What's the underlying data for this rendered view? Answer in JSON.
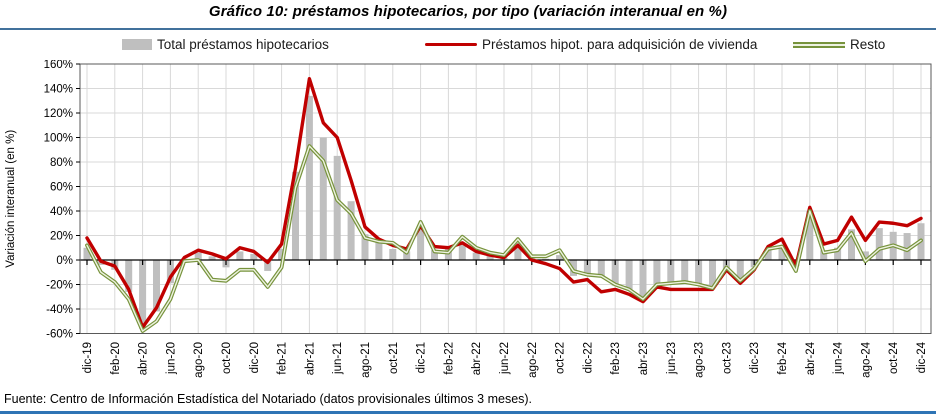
{
  "title": "Gráfico 10: préstamos hipotecarios, por tipo (variación interanual en %)",
  "footer": "Fuente: Centro de Información Estadística del Notariado (datos provisionales últimos 3 meses).",
  "legend": [
    {
      "label": "Total préstamos hipotecarios",
      "swatch": "bar",
      "color": "#BFBFBF"
    },
    {
      "label": "Préstamos hipot. para adquisición de vivienda",
      "swatch": "line",
      "color": "#C00000"
    },
    {
      "label": "Resto",
      "swatch": "line-double",
      "color": "#77933C"
    }
  ],
  "colors": {
    "bar": "#BFBFBF",
    "line_vivienda": "#C00000",
    "line_resto": "#77933C",
    "line_resto_core": "#EDF2E0",
    "grid": "#D9D9D9",
    "plot_border": "#595959",
    "axis": "#000000",
    "rule_top": "#41719C",
    "rule_bottom": "#2E74B5"
  },
  "chart_data": {
    "type": "bar",
    "subtype": "bars-plus-lines",
    "title": "Gráfico 10: préstamos hipotecarios, por tipo (variación interanual en %)",
    "xlabel": "",
    "ylabel": "Variación interanual (en %)",
    "ylim": [
      -60,
      160
    ],
    "ytick_step": 20,
    "ytick_suffix": "%",
    "grid": true,
    "legend_position": "top",
    "xtick_label_every": 2,
    "x": [
      "dic-19",
      "ene-20",
      "feb-20",
      "mar-20",
      "abr-20",
      "may-20",
      "jun-20",
      "jul-20",
      "ago-20",
      "sep-20",
      "oct-20",
      "nov-20",
      "dic-20",
      "ene-21",
      "feb-21",
      "mar-21",
      "abr-21",
      "may-21",
      "jun-21",
      "jul-21",
      "ago-21",
      "sep-21",
      "oct-21",
      "nov-21",
      "dic-21",
      "ene-22",
      "feb-22",
      "mar-22",
      "abr-22",
      "may-22",
      "jun-22",
      "jul-22",
      "ago-22",
      "sep-22",
      "oct-22",
      "nov-22",
      "dic-22",
      "ene-23",
      "feb-23",
      "mar-23",
      "abr-23",
      "may-23",
      "jun-23",
      "jul-23",
      "ago-23",
      "sep-23",
      "oct-23",
      "nov-23",
      "dic-23",
      "ene-24",
      "feb-24",
      "mar-24",
      "abr-24",
      "may-24",
      "jun-24",
      "jul-24",
      "ago-24",
      "sep-24",
      "oct-24",
      "nov-24",
      "dic-24"
    ],
    "series": [
      {
        "name": "Total préstamos hipotecarios",
        "type": "bar",
        "color": "#BFBFBF",
        "values": [
          10,
          -4,
          -8,
          -26,
          -56,
          -42,
          -19,
          1,
          6,
          3,
          -6,
          7,
          5,
          -9,
          9,
          72,
          134,
          100,
          85,
          48,
          21,
          15,
          9,
          7,
          27,
          8,
          9,
          13,
          6,
          4,
          2,
          14,
          2,
          1,
          4,
          -13,
          -12,
          -14,
          -21,
          -24,
          -31,
          -20,
          -20,
          -19,
          -20,
          -22,
          -8,
          -16,
          -6,
          8,
          10,
          -5,
          40,
          8,
          10,
          25,
          7,
          26,
          23,
          22,
          30
        ]
      },
      {
        "name": "Préstamos hipot. para adquisición de vivienda",
        "type": "line",
        "color": "#C00000",
        "values": [
          18,
          -1,
          -5,
          -24,
          -55,
          -39,
          -14,
          2,
          8,
          5,
          1,
          10,
          7,
          -2,
          13,
          75,
          148,
          112,
          100,
          65,
          27,
          17,
          12,
          9,
          28,
          11,
          10,
          14,
          7,
          4,
          2,
          12,
          0,
          -3,
          -7,
          -18,
          -16,
          -26,
          -24,
          -28,
          -34,
          -22,
          -24,
          -24,
          -24,
          -24,
          -8,
          -19,
          -8,
          11,
          17,
          -5,
          43,
          13,
          16,
          35,
          16,
          31,
          30,
          28,
          34
        ]
      },
      {
        "name": "Resto",
        "type": "line",
        "color": "#77933C",
        "values": [
          12,
          -10,
          -18,
          -32,
          -58,
          -50,
          -32,
          -1,
          0,
          -16,
          -17,
          -8,
          -8,
          -22,
          -6,
          59,
          93,
          81,
          49,
          38,
          18,
          15,
          14,
          6,
          31,
          7,
          6,
          19,
          10,
          6,
          4,
          17,
          3,
          3,
          8,
          -9,
          -12,
          -13,
          -20,
          -24,
          -32,
          -20,
          -19,
          -18,
          -20,
          -23,
          -6,
          -17,
          -7,
          9,
          11,
          -9,
          40,
          6,
          8,
          22,
          -1,
          9,
          12,
          8,
          16
        ]
      }
    ]
  }
}
